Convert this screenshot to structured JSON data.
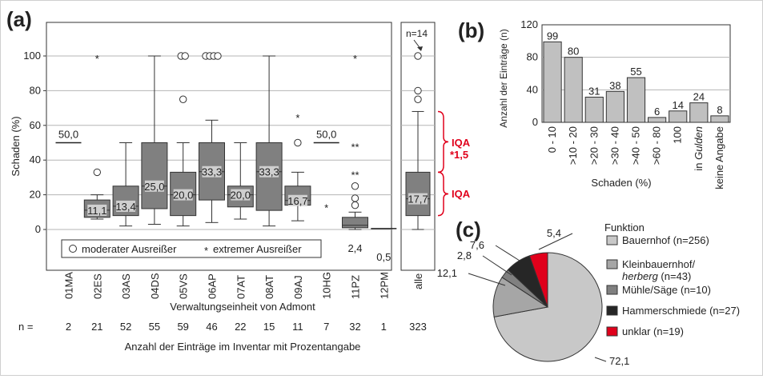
{
  "panels": {
    "a": "(a)",
    "b": "(b)",
    "c": "(c)"
  },
  "colors": {
    "box": "#808080",
    "bar": "#c0c0c0",
    "red": "#e0001b",
    "dark": "#262626",
    "light_pie": "#c8c8c8",
    "mid_pie": "#a6a6a6",
    "mill_pie": "#808080"
  },
  "chart_data": [
    {
      "type": "box",
      "ylabel": "Schaden (%)",
      "xlabel": "Verwaltungseinheit von Admont",
      "n_caption": "Anzahl der Einträge im Inventar mit Prozentangabe",
      "n_prefix": "n =",
      "ylim": [
        -20,
        120
      ],
      "yticks": [
        0,
        20,
        40,
        60,
        80,
        100
      ],
      "legend": {
        "moderate": "moderater Ausreißer",
        "extreme": "extremer Ausreißer"
      },
      "groups": [
        {
          "name": "01MA",
          "n": "2",
          "median_label": "50,0",
          "single": 50
        },
        {
          "name": "02ES",
          "n": "21",
          "median_label": "11,1",
          "min": 6,
          "q1": 7,
          "median": 11.1,
          "q3": 17,
          "max": 20,
          "moderate": [
            33
          ],
          "extreme": [
            100
          ]
        },
        {
          "name": "03AS",
          "n": "52",
          "median_label": "13,4",
          "min": 2,
          "q1": 8,
          "median": 13.4,
          "q3": 25,
          "max": 50
        },
        {
          "name": "04DS",
          "n": "55",
          "median_label": "25,0",
          "min": 3,
          "q1": 12,
          "median": 25,
          "q3": 50,
          "max": 100
        },
        {
          "name": "05VS",
          "n": "59",
          "median_label": "20,0",
          "min": 2,
          "q1": 8,
          "median": 20,
          "q3": 33,
          "max": 50,
          "moderate": [
            75,
            100,
            100
          ]
        },
        {
          "name": "06AP",
          "n": "46",
          "median_label": "33,3",
          "min": 4,
          "q1": 17,
          "median": 33.3,
          "q3": 50,
          "max": 63,
          "moderate": [
            100,
            100,
            100,
            100
          ]
        },
        {
          "name": "07AT",
          "n": "22",
          "median_label": "20,0",
          "min": 6,
          "q1": 13,
          "median": 20,
          "q3": 25,
          "max": 50
        },
        {
          "name": "08AT",
          "n": "15",
          "median_label": "33,3",
          "min": 2,
          "q1": 11,
          "median": 33.3,
          "q3": 50,
          "max": 100
        },
        {
          "name": "09AJ",
          "n": "11",
          "median_label": "16,7",
          "min": 5,
          "q1": 14,
          "median": 16.7,
          "q3": 25,
          "max": 33,
          "moderate": [
            50
          ],
          "extreme": [
            66
          ]
        },
        {
          "name": "10HG",
          "n": "7",
          "median_label": "50,0",
          "single": 50,
          "extreme": [
            14
          ]
        },
        {
          "name": "11PZ",
          "n": "32",
          "median_label": "2,4",
          "min": 0,
          "q1": 1,
          "median": 2.4,
          "q3": 7,
          "max": 10,
          "moderate": [
            14,
            18,
            25
          ],
          "extreme": [
            33,
            49,
            100
          ]
        },
        {
          "name": "12PM",
          "n": "1",
          "median_label": "0,5",
          "single": 0.5
        }
      ],
      "all": {
        "name": "alle",
        "n": "323",
        "n_note": "n=14",
        "median_label": "17,7",
        "min": 0,
        "q1": 8,
        "median": 17.7,
        "q3": 33,
        "max": 68,
        "moderate": [
          75,
          80,
          100
        ]
      },
      "iqa_label_1": "IQA",
      "iqa_label_2": "*1,5",
      "iqa_label_3": "IQA"
    },
    {
      "type": "bar",
      "ylabel": "Anzahl der Einträge (n)",
      "xlabel": "Schaden (%)",
      "ylim": [
        0,
        120
      ],
      "yticks": [
        0,
        40,
        80,
        120
      ],
      "categories": [
        "0 - 10",
        ">10 - 20",
        ">20 - 30",
        ">30 - 40",
        ">40 - 50",
        ">60 - 80",
        "100",
        "in Gulden",
        "keine Angabe"
      ],
      "values": [
        99,
        80,
        31,
        38,
        55,
        6,
        14,
        24,
        8
      ]
    },
    {
      "type": "pie",
      "legend_title": "Funktion",
      "slices": [
        {
          "label": "Bauernhof (n=256)",
          "value": 72.1,
          "value_label": "72,1"
        },
        {
          "label": "Kleinbauernhof/",
          "label_2": "herberg",
          "label_3": "(n=43)",
          "value": 12.1,
          "value_label": "12,1"
        },
        {
          "label": "Mühle/Säge (n=10)",
          "value": 2.8,
          "value_label": "2,8"
        },
        {
          "label": "Hammerschmiede (n=27)",
          "value": 7.6,
          "value_label": "7,6"
        },
        {
          "label": "unklar (n=19)",
          "value": 5.4,
          "value_label": "5,4"
        }
      ]
    }
  ]
}
